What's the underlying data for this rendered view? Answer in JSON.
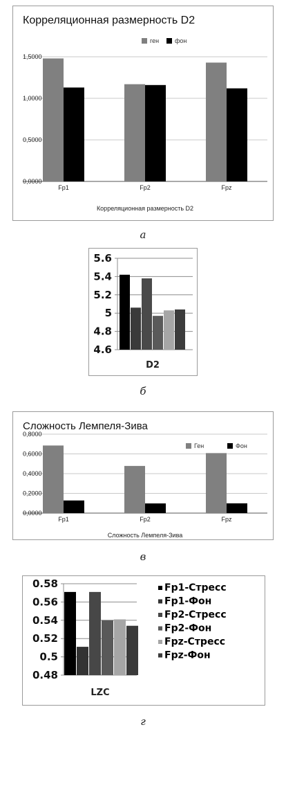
{
  "chart_data": [
    {
      "type": "bar",
      "title": "Корреляционная размерность D2",
      "xlabel": "Корреляционная размерность D2",
      "categories": [
        "Fp1",
        "Fp2",
        "Fpz"
      ],
      "series": [
        {
          "name": "ген",
          "color": "#808080",
          "values": [
            1.48,
            1.17,
            1.43
          ]
        },
        {
          "name": "фон",
          "color": "#000000",
          "values": [
            1.13,
            1.16,
            1.12
          ]
        }
      ],
      "yticks": [
        "0,0000",
        "0,5000",
        "1,0000",
        "1,5000"
      ],
      "ylim": [
        0,
        1.5
      ],
      "legend": "top",
      "caption": "а"
    },
    {
      "type": "bar",
      "xlabel": "D2",
      "categories": [
        "D2"
      ],
      "series": [
        {
          "color": "#000000",
          "value": 5.42
        },
        {
          "color": "#3a3a3a",
          "value": 5.06
        },
        {
          "color": "#4a4a4a",
          "value": 5.38
        },
        {
          "color": "#5a5a5a",
          "value": 4.97
        },
        {
          "color": "#a6a6a6",
          "value": 5.03
        },
        {
          "color": "#3c3c3c",
          "value": 5.04
        }
      ],
      "yticks": [
        "4.6",
        "4.8",
        "5",
        "5.2",
        "5.4",
        "5.6"
      ],
      "ylim": [
        4.6,
        5.6
      ],
      "caption": "б"
    },
    {
      "type": "bar",
      "title": "Сложность Лемпеля-Зива",
      "xlabel": "Сложность Лемпеля-Зива",
      "categories": [
        "Fp1",
        "Fp2",
        "Fpz"
      ],
      "series": [
        {
          "name": "Ген",
          "color": "#808080",
          "values": [
            0.685,
            0.478,
            0.608
          ]
        },
        {
          "name": "Фон",
          "color": "#000000",
          "values": [
            0.128,
            0.098,
            0.099
          ]
        }
      ],
      "yticks": [
        "0,0000",
        "0,2000",
        "0,4000",
        "0,6000",
        "0,8000"
      ],
      "ylim": [
        0,
        0.8
      ],
      "legend": "top-right",
      "caption": "в"
    },
    {
      "type": "bar",
      "xlabel": "LZC",
      "categories": [
        "LZC"
      ],
      "series": [
        {
          "name": "Fp1-Стресс",
          "color": "#000000",
          "value": 0.571
        },
        {
          "name": "Fp1-Фон",
          "color": "#333333",
          "value": 0.511
        },
        {
          "name": "Fp2-Стресс",
          "color": "#474747",
          "value": 0.571
        },
        {
          "name": "Fp2-Фон",
          "color": "#595959",
          "value": 0.54
        },
        {
          "name": "Fpz-Стресс",
          "color": "#a6a6a6",
          "value": 0.541
        },
        {
          "name": "Fpz-Фон",
          "color": "#3a3a3a",
          "value": 0.534
        }
      ],
      "yticks": [
        "0.48",
        "0.5",
        "0.52",
        "0.54",
        "0.56",
        "0.58"
      ],
      "ylim": [
        0.48,
        0.58
      ],
      "legend": "right",
      "caption": "г"
    }
  ]
}
